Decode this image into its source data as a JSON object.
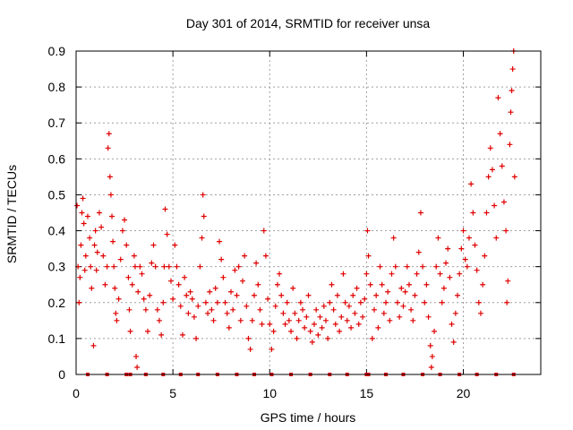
{
  "chart_data": {
    "type": "scatter",
    "title": "Day 301 of 2014, SRMTID for receiver unsa",
    "xlabel": "GPS time / hours",
    "ylabel": "SRMTID / TECUs",
    "xlim": [
      0,
      24
    ],
    "ylim": [
      0,
      0.9
    ],
    "xticks": [
      0,
      5,
      10,
      15,
      20
    ],
    "yticks": [
      0,
      0.1,
      0.2,
      0.3,
      0.4,
      0.5,
      0.6,
      0.7,
      0.8,
      0.9
    ],
    "grid": true,
    "marker": "plus",
    "color": "#e00000",
    "series": [
      {
        "name": "SRMTID",
        "points": [
          [
            0.05,
            0.47
          ],
          [
            0.1,
            0.3
          ],
          [
            0.15,
            0.2
          ],
          [
            0.2,
            0.27
          ],
          [
            0.25,
            0.36
          ],
          [
            0.3,
            0.45
          ],
          [
            0.35,
            0.49
          ],
          [
            0.4,
            0.42
          ],
          [
            0.45,
            0.29
          ],
          [
            0.5,
            0.33
          ],
          [
            0.6,
            0.44
          ],
          [
            0.7,
            0.38
          ],
          [
            0.75,
            0.3
          ],
          [
            0.8,
            0.24
          ],
          [
            0.9,
            0.08
          ],
          [
            0.95,
            0.36
          ],
          [
            1.0,
            0.4
          ],
          [
            1.05,
            0.29
          ],
          [
            1.1,
            0.34
          ],
          [
            1.2,
            0.45
          ],
          [
            1.3,
            0.41
          ],
          [
            1.4,
            0.33
          ],
          [
            1.5,
            0.25
          ],
          [
            1.6,
            0.3
          ],
          [
            1.65,
            0.63
          ],
          [
            1.7,
            0.67
          ],
          [
            1.75,
            0.55
          ],
          [
            1.8,
            0.5
          ],
          [
            1.85,
            0.44
          ],
          [
            1.9,
            0.37
          ],
          [
            1.95,
            0.3
          ],
          [
            2.0,
            0.24
          ],
          [
            2.05,
            0.17
          ],
          [
            2.1,
            0.15
          ],
          [
            2.2,
            0.21
          ],
          [
            2.3,
            0.32
          ],
          [
            2.4,
            0.4
          ],
          [
            2.5,
            0.43
          ],
          [
            2.6,
            0.36
          ],
          [
            2.7,
            0.27
          ],
          [
            2.75,
            0.18
          ],
          [
            2.8,
            0.12
          ],
          [
            2.9,
            0.25
          ],
          [
            3.0,
            0.33
          ],
          [
            3.05,
            0.3
          ],
          [
            3.1,
            0.05
          ],
          [
            3.15,
            0.02
          ],
          [
            3.2,
            0.23
          ],
          [
            3.3,
            0.3
          ],
          [
            3.4,
            0.28
          ],
          [
            3.5,
            0.21
          ],
          [
            3.6,
            0.18
          ],
          [
            3.7,
            0.12
          ],
          [
            3.8,
            0.22
          ],
          [
            3.9,
            0.31
          ],
          [
            4.0,
            0.36
          ],
          [
            4.1,
            0.3
          ],
          [
            4.2,
            0.18
          ],
          [
            4.3,
            0.15
          ],
          [
            4.4,
            0.11
          ],
          [
            4.5,
            0.2
          ],
          [
            4.55,
            0.3
          ],
          [
            4.6,
            0.46
          ],
          [
            4.7,
            0.39
          ],
          [
            4.8,
            0.3
          ],
          [
            4.9,
            0.26
          ],
          [
            5.0,
            0.21
          ],
          [
            5.1,
            0.36
          ],
          [
            5.2,
            0.3
          ],
          [
            5.3,
            0.25
          ],
          [
            5.4,
            0.19
          ],
          [
            5.5,
            0.11
          ],
          [
            5.6,
            0.27
          ],
          [
            5.7,
            0.22
          ],
          [
            5.8,
            0.17
          ],
          [
            5.9,
            0.23
          ],
          [
            6.0,
            0.21
          ],
          [
            6.1,
            0.16
          ],
          [
            6.2,
            0.1
          ],
          [
            6.3,
            0.19
          ],
          [
            6.4,
            0.3
          ],
          [
            6.5,
            0.38
          ],
          [
            6.55,
            0.5
          ],
          [
            6.6,
            0.44
          ],
          [
            6.7,
            0.2
          ],
          [
            6.8,
            0.17
          ],
          [
            6.9,
            0.23
          ],
          [
            7.0,
            0.18
          ],
          [
            7.1,
            0.15
          ],
          [
            7.2,
            0.24
          ],
          [
            7.3,
            0.2
          ],
          [
            7.4,
            0.37
          ],
          [
            7.5,
            0.32
          ],
          [
            7.6,
            0.27
          ],
          [
            7.7,
            0.2
          ],
          [
            7.8,
            0.17
          ],
          [
            7.9,
            0.13
          ],
          [
            8.0,
            0.23
          ],
          [
            8.1,
            0.18
          ],
          [
            8.2,
            0.29
          ],
          [
            8.3,
            0.22
          ],
          [
            8.4,
            0.3
          ],
          [
            8.5,
            0.15
          ],
          [
            8.6,
            0.26
          ],
          [
            8.7,
            0.33
          ],
          [
            8.8,
            0.19
          ],
          [
            8.9,
            0.1
          ],
          [
            9.0,
            0.07
          ],
          [
            9.1,
            0.15
          ],
          [
            9.2,
            0.22
          ],
          [
            9.3,
            0.31
          ],
          [
            9.4,
            0.25
          ],
          [
            9.5,
            0.18
          ],
          [
            9.6,
            0.14
          ],
          [
            9.7,
            0.4
          ],
          [
            9.8,
            0.33
          ],
          [
            9.9,
            0.21
          ],
          [
            10.0,
            0.14
          ],
          [
            10.1,
            0.07
          ],
          [
            10.2,
            0.12
          ],
          [
            10.3,
            0.19
          ],
          [
            10.4,
            0.25
          ],
          [
            10.5,
            0.28
          ],
          [
            10.6,
            0.22
          ],
          [
            10.7,
            0.17
          ],
          [
            10.8,
            0.14
          ],
          [
            10.9,
            0.2
          ],
          [
            11.0,
            0.15
          ],
          [
            11.1,
            0.12
          ],
          [
            11.2,
            0.24
          ],
          [
            11.3,
            0.17
          ],
          [
            11.4,
            0.1
          ],
          [
            11.5,
            0.15
          ],
          [
            11.6,
            0.2
          ],
          [
            11.7,
            0.18
          ],
          [
            11.8,
            0.13
          ],
          [
            11.9,
            0.16
          ],
          [
            12.0,
            0.22
          ],
          [
            12.1,
            0.12
          ],
          [
            12.2,
            0.09
          ],
          [
            12.3,
            0.14
          ],
          [
            12.4,
            0.18
          ],
          [
            12.5,
            0.11
          ],
          [
            12.6,
            0.16
          ],
          [
            12.7,
            0.13
          ],
          [
            12.8,
            0.19
          ],
          [
            12.9,
            0.15
          ],
          [
            13.0,
            0.1
          ],
          [
            13.1,
            0.2
          ],
          [
            13.2,
            0.25
          ],
          [
            13.3,
            0.18
          ],
          [
            13.4,
            0.14
          ],
          [
            13.5,
            0.22
          ],
          [
            13.6,
            0.12
          ],
          [
            13.7,
            0.16
          ],
          [
            13.8,
            0.28
          ],
          [
            13.9,
            0.2
          ],
          [
            14.0,
            0.15
          ],
          [
            14.1,
            0.19
          ],
          [
            14.2,
            0.13
          ],
          [
            14.3,
            0.22
          ],
          [
            14.4,
            0.17
          ],
          [
            14.5,
            0.24
          ],
          [
            14.6,
            0.14
          ],
          [
            14.7,
            0.2
          ],
          [
            14.8,
            0.16
          ],
          [
            14.9,
            0.21
          ],
          [
            15.0,
            0.28
          ],
          [
            15.05,
            0.4
          ],
          [
            15.1,
            0.33
          ],
          [
            15.2,
            0.25
          ],
          [
            15.3,
            0.1
          ],
          [
            15.4,
            0.18
          ],
          [
            15.5,
            0.22
          ],
          [
            15.6,
            0.13
          ],
          [
            15.7,
            0.3
          ],
          [
            15.8,
            0.25
          ],
          [
            15.9,
            0.17
          ],
          [
            16.0,
            0.2
          ],
          [
            16.1,
            0.23
          ],
          [
            16.2,
            0.15
          ],
          [
            16.3,
            0.28
          ],
          [
            16.4,
            0.38
          ],
          [
            16.5,
            0.3
          ],
          [
            16.6,
            0.2
          ],
          [
            16.7,
            0.16
          ],
          [
            16.8,
            0.24
          ],
          [
            16.9,
            0.19
          ],
          [
            17.0,
            0.23
          ],
          [
            17.1,
            0.3
          ],
          [
            17.2,
            0.25
          ],
          [
            17.3,
            0.18
          ],
          [
            17.4,
            0.15
          ],
          [
            17.5,
            0.22
          ],
          [
            17.6,
            0.28
          ],
          [
            17.7,
            0.34
          ],
          [
            17.8,
            0.45
          ],
          [
            17.9,
            0.3
          ],
          [
            18.0,
            0.2
          ],
          [
            18.1,
            0.25
          ],
          [
            18.2,
            0.16
          ],
          [
            18.3,
            0.08
          ],
          [
            18.35,
            0.02
          ],
          [
            18.4,
            0.05
          ],
          [
            18.5,
            0.12
          ],
          [
            18.6,
            0.3
          ],
          [
            18.7,
            0.38
          ],
          [
            18.8,
            0.28
          ],
          [
            18.9,
            0.2
          ],
          [
            19.0,
            0.24
          ],
          [
            19.1,
            0.31
          ],
          [
            19.2,
            0.35
          ],
          [
            19.3,
            0.27
          ],
          [
            19.4,
            0.14
          ],
          [
            19.5,
            0.09
          ],
          [
            19.6,
            0.17
          ],
          [
            19.7,
            0.22
          ],
          [
            19.8,
            0.28
          ],
          [
            19.9,
            0.35
          ],
          [
            20.0,
            0.4
          ],
          [
            20.1,
            0.32
          ],
          [
            20.2,
            0.3
          ],
          [
            20.3,
            0.38
          ],
          [
            20.4,
            0.53
          ],
          [
            20.5,
            0.45
          ],
          [
            20.6,
            0.36
          ],
          [
            20.7,
            0.29
          ],
          [
            20.8,
            0.2
          ],
          [
            20.9,
            0.17
          ],
          [
            21.0,
            0.25
          ],
          [
            21.1,
            0.33
          ],
          [
            21.2,
            0.45
          ],
          [
            21.3,
            0.55
          ],
          [
            21.4,
            0.63
          ],
          [
            21.5,
            0.57
          ],
          [
            21.6,
            0.47
          ],
          [
            21.7,
            0.38
          ],
          [
            21.8,
            0.77
          ],
          [
            21.9,
            0.67
          ],
          [
            22.0,
            0.58
          ],
          [
            22.1,
            0.48
          ],
          [
            22.2,
            0.4
          ],
          [
            22.25,
            0.2
          ],
          [
            22.3,
            0.26
          ],
          [
            22.4,
            0.64
          ],
          [
            22.45,
            0.73
          ],
          [
            22.5,
            0.79
          ],
          [
            22.55,
            0.85
          ],
          [
            22.6,
            0.9
          ],
          [
            22.65,
            0.55
          ]
        ]
      }
    ],
    "baseline_markers_x": [
      0.6,
      1.6,
      2.6,
      2.8,
      3.6,
      4.5,
      5.4,
      6.3,
      7.3,
      8.3,
      9.2,
      10.1,
      11.1,
      12.1,
      13.1,
      14.0,
      15.0,
      15.1,
      16.0,
      16.9,
      17.9,
      18.8,
      19.8,
      20.7,
      21.7,
      22.6
    ]
  }
}
